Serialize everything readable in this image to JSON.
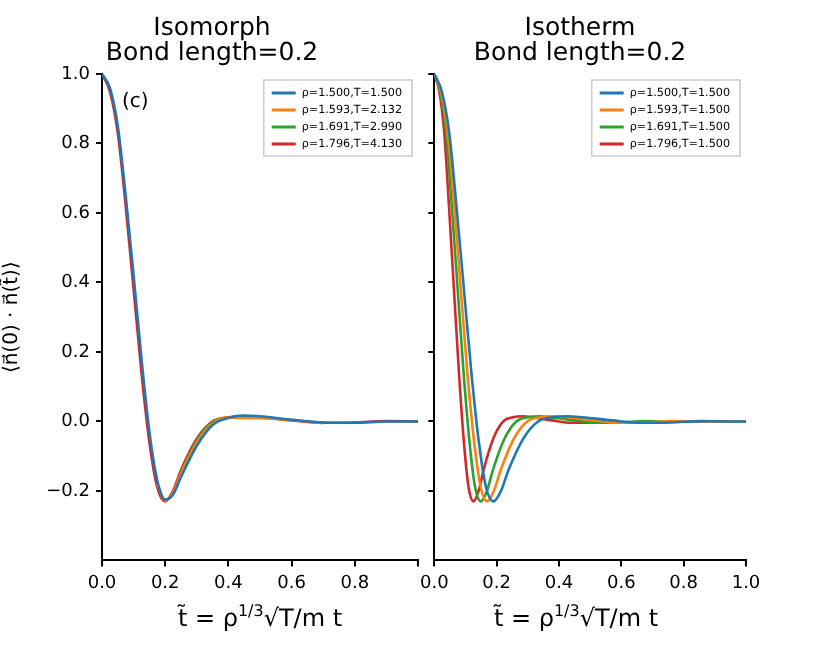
{
  "chart_data": [
    {
      "type": "line",
      "title": "Isomorph\nBond length=0.2",
      "xlabel": "t̃ = ρ$^{1/3}$√T/m  t",
      "ylabel": "⟨n⃗(0) · n⃗(t̃)⟩",
      "annotations": [
        "(c)"
      ],
      "x": [
        0,
        0.025,
        0.05,
        0.075,
        0.1,
        0.125,
        0.15,
        0.175,
        0.2,
        0.225,
        0.25,
        0.3,
        0.35,
        0.4,
        0.45,
        0.5,
        0.6,
        0.7,
        0.8,
        0.9,
        1.0
      ],
      "series": [
        {
          "name": "ρ=1.500,T=1.500",
          "color": "#1f77b4",
          "values": [
            1,
            0.96,
            0.85,
            0.65,
            0.42,
            0.18,
            -0.03,
            -0.17,
            -0.225,
            -0.21,
            -0.16,
            -0.07,
            -0.01,
            0.01,
            0.017,
            0.015,
            0.005,
            -0.003,
            -0.004,
            0,
            0
          ]
        },
        {
          "name": "ρ=1.593,T=2.132",
          "color": "#ff7f0e",
          "values": [
            null,
            null,
            null,
            null,
            null,
            null,
            null,
            -0.18,
            -0.228,
            -0.205,
            -0.15,
            -0.06,
            -0.005,
            0.011,
            null,
            null,
            0.004,
            -0.005,
            null,
            null,
            null
          ]
        },
        {
          "name": "ρ=1.691,T=2.990",
          "color": "#2ca02c",
          "values": [
            null,
            null,
            null,
            null,
            null,
            null,
            null,
            null,
            null,
            null,
            -0.145,
            -0.055,
            -0.002,
            0.012,
            null,
            null,
            null,
            null,
            null,
            null,
            null
          ]
        },
        {
          "name": "ρ=1.796,T=4.130",
          "color": "#d62728",
          "values": [
            1,
            0.95,
            0.83,
            0.62,
            0.38,
            0.14,
            -0.06,
            -0.19,
            -0.23,
            -0.2,
            -0.14,
            -0.05,
            0,
            0.012,
            0.015,
            0.012,
            0.003,
            -0.004,
            -0.003,
            0.001,
            0
          ]
        }
      ],
      "xlim": [
        0,
        1
      ],
      "ylim": [
        -0.4,
        1.0
      ],
      "xticks": [
        {
          "value": 0,
          "label": "0.0"
        },
        {
          "value": 0.2,
          "label": "0.2"
        },
        {
          "value": 0.4,
          "label": "0.4"
        },
        {
          "value": 0.6,
          "label": "0.6"
        },
        {
          "value": 0.8,
          "label": "0.8"
        },
        {
          "value": 1,
          "label": null
        }
      ],
      "yticks": [
        {
          "value": -0.2,
          "label": "−0.2"
        },
        {
          "value": 0,
          "label": "0.0"
        },
        {
          "value": 0.2,
          "label": "0.2"
        },
        {
          "value": 0.4,
          "label": "0.4"
        },
        {
          "value": 0.6,
          "label": "0.6"
        },
        {
          "value": 0.8,
          "label": "0.8"
        },
        {
          "value": 1,
          "label": "1.0"
        }
      ],
      "grid": false,
      "legend": "top right",
      "marker": "none",
      "line_style": "solid"
    },
    {
      "type": "line",
      "title": "Isotherm\nBond length=0.2",
      "xlabel": "t̃ = ρ$^{1/3}$√T/m  t",
      "series": [
        {
          "name": "ρ=1.500,T=1.500",
          "color": "#1f77b4",
          "x": [
            0,
            0.024,
            0.048,
            0.071,
            0.095,
            0.119,
            0.143,
            0.166,
            0.19,
            0.214,
            0.238,
            0.285,
            0.333,
            0.38,
            0.428,
            0.475,
            0.57,
            0.665,
            0.76,
            0.855,
            0.95,
            1.0
          ],
          "values": [
            1,
            0.95,
            0.83,
            0.62,
            0.38,
            0.14,
            -0.06,
            -0.19,
            -0.23,
            -0.2,
            -0.14,
            -0.05,
            0,
            0.012,
            0.015,
            0.012,
            0.003,
            -0.004,
            -0.003,
            0.001,
            0,
            0
          ]
        },
        {
          "name": "ρ=1.593,T=1.500",
          "color": "#ff7f0e",
          "x": [
            0,
            0.021,
            0.043,
            0.064,
            0.085,
            0.106,
            0.128,
            0.149,
            0.17,
            0.191,
            0.213,
            0.255,
            0.298,
            0.34,
            0.383,
            0.425,
            0.51,
            0.595,
            0.68,
            0.765,
            0.85,
            1.0
          ],
          "values": [
            1,
            0.95,
            0.83,
            0.62,
            0.38,
            0.14,
            -0.06,
            -0.19,
            -0.23,
            -0.2,
            -0.14,
            -0.05,
            0,
            0.012,
            0.015,
            0.012,
            0.003,
            -0.004,
            -0.003,
            0.001,
            0,
            0
          ]
        },
        {
          "name": "ρ=1.691,T=1.500",
          "color": "#2ca02c",
          "x": [
            0,
            0.019,
            0.038,
            0.056,
            0.075,
            0.094,
            0.113,
            0.131,
            0.15,
            0.169,
            0.188,
            0.225,
            0.263,
            0.3,
            0.338,
            0.375,
            0.45,
            0.525,
            0.6,
            0.675,
            0.75,
            1.0
          ],
          "values": [
            1,
            0.95,
            0.83,
            0.62,
            0.38,
            0.14,
            -0.06,
            -0.19,
            -0.23,
            -0.2,
            -0.14,
            -0.05,
            0,
            0.012,
            0.015,
            0.012,
            0.003,
            -0.004,
            -0.003,
            0.001,
            0,
            0
          ]
        },
        {
          "name": "ρ=1.796,T=1.500",
          "color": "#d62728",
          "x": [
            0,
            0.016,
            0.032,
            0.047,
            0.063,
            0.079,
            0.095,
            0.11,
            0.126,
            0.142,
            0.158,
            0.189,
            0.221,
            0.252,
            0.284,
            0.315,
            0.378,
            0.441,
            0.504,
            0.567
          ],
          "values": [
            1,
            0.95,
            0.83,
            0.62,
            0.38,
            0.14,
            -0.06,
            -0.19,
            -0.23,
            -0.2,
            -0.14,
            -0.05,
            0,
            0.012,
            0.015,
            0.012,
            0.003,
            -0.004,
            -0.003,
            0.001
          ]
        }
      ],
      "xlim": [
        0,
        1
      ],
      "ylim": [
        -0.4,
        1.0
      ],
      "xticks": [
        {
          "value": 0,
          "label": "0.0"
        },
        {
          "value": 0.2,
          "label": "0.2"
        },
        {
          "value": 0.4,
          "label": "0.4"
        },
        {
          "value": 0.6,
          "label": "0.6"
        },
        {
          "value": 0.8,
          "label": "0.8"
        },
        {
          "value": 1,
          "label": "1.0"
        }
      ],
      "yticks": [
        {
          "value": -0.2,
          "label": null
        },
        {
          "value": 0,
          "label": null
        },
        {
          "value": 0.2,
          "label": null
        },
        {
          "value": 0.4,
          "label": null
        },
        {
          "value": 0.6,
          "label": null
        },
        {
          "value": 0.8,
          "label": null
        },
        {
          "value": 1,
          "label": null
        }
      ],
      "tick_labels": "x",
      "grid": false,
      "legend": "top right",
      "marker": "none",
      "line_style": "solid"
    }
  ]
}
